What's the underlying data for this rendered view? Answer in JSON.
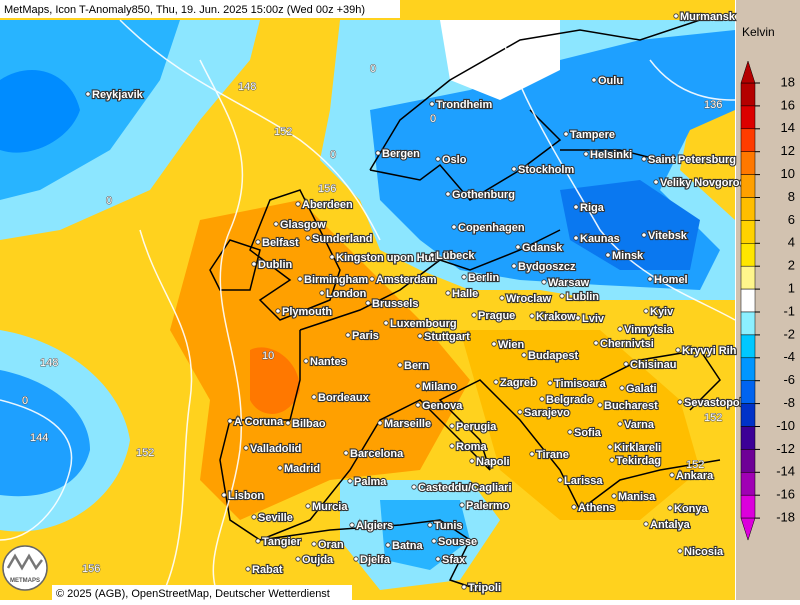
{
  "header": {
    "title": "MetMaps, Icon T-Anomaly850, Thu, 19. Jun. 2025 15:00z (Wed 00z +39h)"
  },
  "legend": {
    "unit": "Kelvin",
    "ticks": [
      18,
      16,
      14,
      12,
      10,
      8,
      6,
      4,
      2,
      1,
      -1,
      -2,
      -4,
      -6,
      -8,
      -10,
      -12,
      -14,
      -16,
      -18
    ],
    "colors": [
      "#b40000",
      "#dc0000",
      "#ff3c00",
      "#ff7800",
      "#ffa000",
      "#ffbe00",
      "#ffd200",
      "#ffe600",
      "#fff68c",
      "#ffffff",
      "#8cf0ff",
      "#00c8ff",
      "#0096ff",
      "#0064f0",
      "#0032c8",
      "#3c0096",
      "#6e0096",
      "#a000b4",
      "#dc00dc"
    ]
  },
  "cities": [
    "Murmansk",
    "Oulu",
    "Reykjavik",
    "Trondheim",
    "Tampere",
    "Bergen",
    "Oslo",
    "Helsinki",
    "Saint Petersburg",
    "Stockholm",
    "Veliky Novgorod",
    "Gothenburg",
    "Riga",
    "Aberdeen",
    "Glasgow",
    "Copenhagen",
    "Vitebsk",
    "Belfast",
    "Sunderland",
    "Kaunas",
    "Gdansk",
    "Kingston upon Hull",
    "Lübeck",
    "Minsk",
    "Dublin",
    "Bydgoszcz",
    "Birmingham",
    "Amsterdam",
    "Berlin",
    "Warsaw",
    "Homel",
    "London",
    "Halle",
    "Wroclaw",
    "Lublin",
    "Brussels",
    "Plymouth",
    "Prague",
    "Krakow",
    "Lviv",
    "Kyiv",
    "Luxembourg",
    "Vinnytsia",
    "Paris",
    "Stuttgart",
    "Wien",
    "Chernivtsi",
    "Kryvyi Rih",
    "Budapest",
    "Nantes",
    "Bern",
    "Chisinau",
    "Milano",
    "Zagreb",
    "Timisoara",
    "Galati",
    "Bordeaux",
    "Genova",
    "Belgrade",
    "Bucharest",
    "Sevastopol",
    "Sarajevo",
    "A Coruna",
    "Bilbao",
    "Marseille",
    "Perugia",
    "Varna",
    "Sofia",
    "Roma",
    "Kirklareli",
    "Valladolid",
    "Barcelona",
    "Tirane",
    "Napoli",
    "Tekirdag",
    "Madrid",
    "Ankara",
    "Larissa",
    "Palma",
    "Casteddu/Cagliari",
    "Lisbon",
    "Manisa",
    "Palermo",
    "Murcia",
    "Athens",
    "Konya",
    "Seville",
    "Algiers",
    "Tunis",
    "Antalya",
    "Tangier",
    "Oran",
    "Batna",
    "Sousse",
    "Nicosia",
    "Oujda",
    "Djelfa",
    "Sfax",
    "Rabat",
    "Tripoli"
  ],
  "contour_labels": [
    "148",
    "152",
    "156",
    "136",
    "148",
    "144",
    "152",
    "152",
    "152",
    "156",
    "10",
    "0",
    "0",
    "0",
    "0",
    "0"
  ],
  "footer": {
    "attribution": "© 2025 (AGB), OpenStreetMap, Deutscher Wetterdienst",
    "logo": "METMAPS"
  }
}
